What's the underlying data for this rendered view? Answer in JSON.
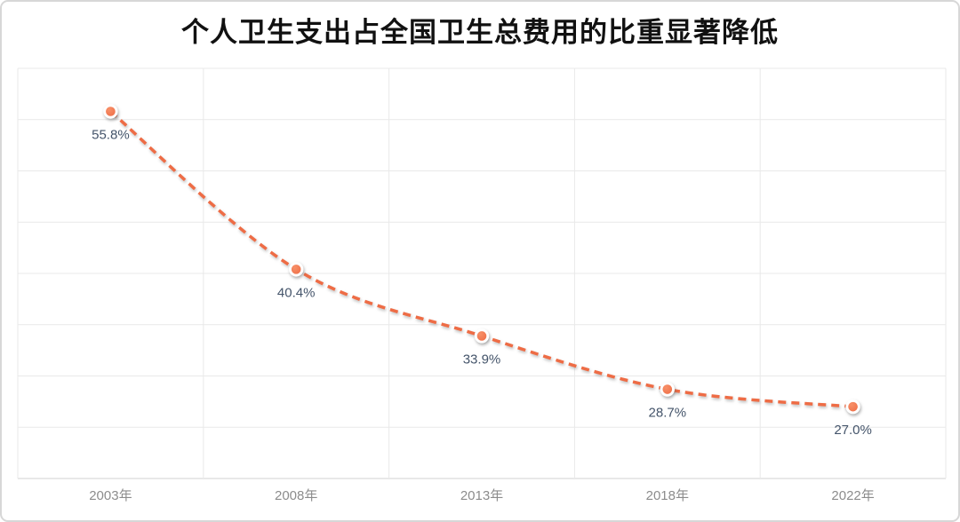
{
  "window": {
    "background": "#ffffff",
    "border_color": "#d7d7d7"
  },
  "chart_data": {
    "type": "line",
    "title": "个人卫生支出占全国卫生总费用的比重显著降低",
    "categories": [
      "2003年",
      "2008年",
      "2013年",
      "2018年",
      "2022年"
    ],
    "values": [
      55.8,
      40.4,
      33.9,
      28.7,
      27.0
    ],
    "value_labels": [
      "55.8%",
      "40.4%",
      "33.9%",
      "28.7%",
      "27.0%"
    ],
    "xlabel": "",
    "ylabel": "",
    "ylim": [
      20,
      60
    ],
    "y_grid_step": 5,
    "grid": true,
    "legend_position": "none",
    "line_style": "dashed",
    "smooth": true,
    "colors": {
      "line": "#EE6C45",
      "marker_fill": "#F0714A",
      "marker_fill_light": "#F79068",
      "marker_ring": "#FFFFFF",
      "grid": "#E9E9E9",
      "axis_line": "#D2D2D2",
      "data_label": "#44546A",
      "tick_label": "#8C8C8C",
      "title": "#111111"
    }
  }
}
